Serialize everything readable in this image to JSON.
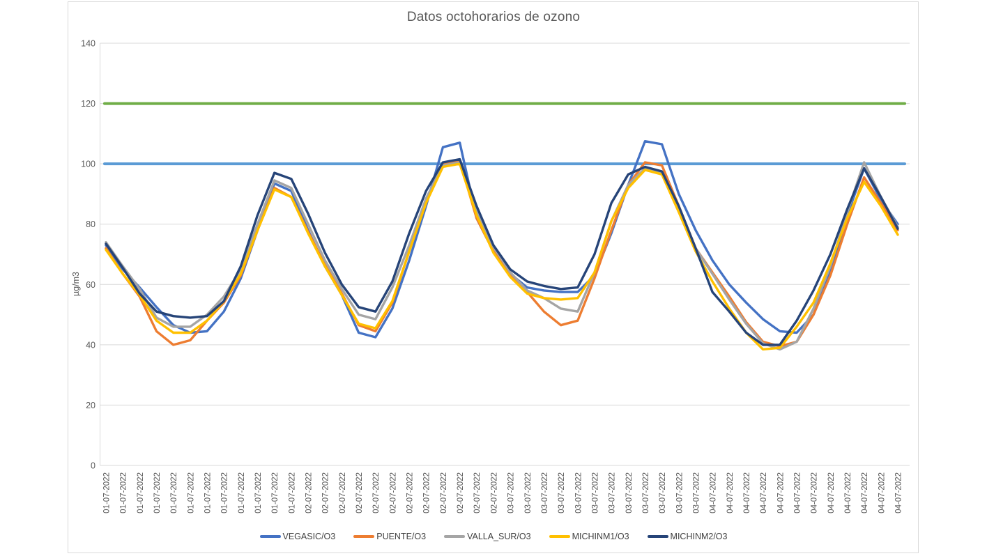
{
  "window": {
    "background": "#ffffff",
    "frame_border_color": "#d9d9d9",
    "grid_color": "#d9d9d9",
    "tick_label_color": "#595959",
    "title_color": "#595959"
  },
  "chart_data": {
    "type": "line",
    "title": "Datos octohorarios de ozono",
    "xlabel": "",
    "ylabel": "µg/m3",
    "ylim": [
      0,
      140
    ],
    "y_ticks": [
      0,
      20,
      40,
      60,
      80,
      100,
      120,
      140
    ],
    "grid": "horizontal",
    "legend_position": "bottom",
    "x_labels": [
      "01-07-2022",
      "01-07-2022",
      "01-07-2022",
      "01-07-2022",
      "01-07-2022",
      "01-07-2022",
      "01-07-2022",
      "01-07-2022",
      "01-07-2022",
      "01-07-2022",
      "01-07-2022",
      "01-07-2022",
      "02-07-2022",
      "02-07-2022",
      "02-07-2022",
      "02-07-2022",
      "02-07-2022",
      "02-07-2022",
      "02-07-2022",
      "02-07-2022",
      "02-07-2022",
      "02-07-2022",
      "02-07-2022",
      "02-07-2022",
      "03-07-2022",
      "03-07-2022",
      "03-07-2022",
      "03-07-2022",
      "03-07-2022",
      "03-07-2022",
      "03-07-2022",
      "03-07-2022",
      "03-07-2022",
      "03-07-2022",
      "03-07-2022",
      "03-07-2022",
      "04-07-2022",
      "04-07-2022",
      "04-07-2022",
      "04-07-2022",
      "04-07-2022",
      "04-07-2022",
      "04-07-2022",
      "04-07-2022",
      "04-07-2022",
      "04-07-2022",
      "04-07-2022",
      "04-07-2022"
    ],
    "series": [
      {
        "name": "VEGASIC/O3",
        "color": "#4472C4",
        "values": [
          73,
          65,
          59,
          52.5,
          46.5,
          44,
          44.5,
          51,
          62,
          78,
          93.5,
          91,
          78,
          66,
          56.5,
          44,
          42.5,
          52,
          68,
          86,
          105.5,
          107,
          82,
          71,
          63.5,
          59,
          58,
          57.5,
          57.5,
          63,
          77,
          93,
          107.5,
          106.5,
          90,
          78,
          68,
          60,
          54,
          48.5,
          44.5,
          44,
          50,
          64,
          83,
          98.5,
          88,
          80
        ]
      },
      {
        "name": "PUENTE/O3",
        "color": "#ED7D31",
        "values": [
          72,
          63.5,
          56,
          44.5,
          40,
          41.5,
          48,
          54,
          63,
          78,
          92,
          89,
          77.5,
          66.5,
          57,
          46.5,
          44.5,
          54,
          71,
          87,
          100,
          101,
          82,
          71,
          63,
          57.5,
          51,
          46.5,
          48,
          62,
          78,
          93,
          100.5,
          99.5,
          86,
          72,
          64,
          56,
          47.5,
          41,
          39.5,
          41,
          50,
          63,
          80,
          95.5,
          87,
          78
        ]
      },
      {
        "name": "VALLA_SUR/O3",
        "color": "#A5A5A5",
        "values": [
          74,
          66,
          58.5,
          49,
          46,
          46,
          50,
          56,
          65,
          80,
          94.5,
          92,
          80,
          68,
          58.5,
          50,
          48.5,
          59,
          73,
          88.5,
          99.5,
          100.5,
          84,
          72.5,
          64,
          58,
          55.5,
          52,
          51,
          64,
          81,
          93,
          98.5,
          97,
          85,
          72,
          63.5,
          55,
          47,
          40.5,
          38.5,
          41,
          52,
          66,
          84,
          100.5,
          89,
          79
        ]
      },
      {
        "name": "MICHINM1/O3",
        "color": "#FFC000",
        "values": [
          71.5,
          63.5,
          56.5,
          48,
          44,
          44,
          48,
          54.5,
          63.5,
          78,
          91.5,
          89,
          77,
          66,
          56.5,
          47,
          45.5,
          54.5,
          71,
          87,
          99,
          100,
          83,
          70.5,
          62.5,
          57,
          55.5,
          55,
          55.5,
          64,
          81,
          92,
          98,
          96.5,
          84,
          71,
          61,
          52,
          44,
          38.5,
          39,
          46,
          54,
          67,
          82,
          94,
          86,
          76.5
        ]
      },
      {
        "name": "MICHINM2/O3",
        "color": "#264478",
        "values": [
          73.5,
          65.5,
          57,
          51,
          49.5,
          49,
          49.5,
          54.5,
          66,
          83,
          97,
          95,
          83.5,
          70.5,
          60,
          52.5,
          51,
          61,
          77,
          91,
          100.5,
          101.5,
          86,
          73,
          65,
          61,
          59.5,
          58.5,
          59,
          70,
          87,
          96.5,
          99,
          97.5,
          86,
          72,
          57.5,
          51,
          44,
          40,
          40,
          48,
          58,
          70,
          85,
          98.5,
          89,
          78.5
        ]
      }
    ],
    "reference_lines": [
      {
        "value": 120,
        "color": "#70AD47"
      },
      {
        "value": 100,
        "color": "#5B9BD5"
      }
    ]
  }
}
